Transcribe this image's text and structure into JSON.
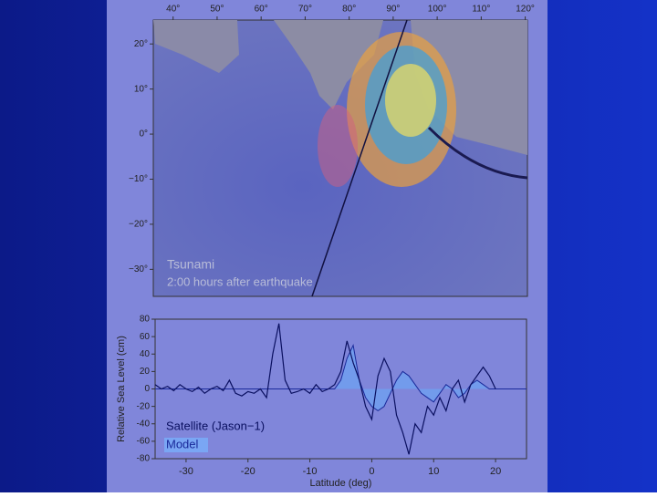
{
  "chart_data": [
    {
      "type": "map",
      "xlim": [
        35.5,
        120.5
      ],
      "xticks": [
        {
          "value": 40,
          "label": "40°"
        },
        {
          "value": 50,
          "label": "50°"
        },
        {
          "value": 60,
          "label": "60°"
        },
        {
          "value": 70,
          "label": "70°"
        },
        {
          "value": 80,
          "label": "80°"
        },
        {
          "value": 90,
          "label": "90°"
        },
        {
          "value": 100,
          "label": "100°"
        },
        {
          "value": 110,
          "label": "110°"
        },
        {
          "value": 120,
          "label": "120°"
        }
      ],
      "ylim": [
        -36,
        25.3
      ],
      "yticks": [
        {
          "value": 20,
          "label": "20°"
        },
        {
          "value": 10,
          "label": "10°"
        },
        {
          "value": 0,
          "label": "0°"
        },
        {
          "value": -10,
          "label": "−10°"
        },
        {
          "value": -20,
          "label": "−20°"
        },
        {
          "value": -30,
          "label": "−30°"
        }
      ],
      "annotations": [
        "Tsunami",
        "2:00 hours after earthquake"
      ]
    },
    {
      "type": "line",
      "x_label": "Latitude (deg)",
      "y_label": "Relative Sea Level (cm)",
      "xlim": [
        -35,
        25
      ],
      "xticks": [
        -30,
        -20,
        -10,
        0,
        10,
        20
      ],
      "ylim": [
        -80,
        80
      ],
      "yticks": [
        -80,
        -60,
        -40,
        -20,
        0,
        20,
        40,
        60,
        80
      ],
      "x": [
        -35,
        -34,
        -33,
        -32,
        -31,
        -30,
        -29,
        -28,
        -27,
        -26,
        -25,
        -24,
        -23,
        -22,
        -21,
        -20,
        -19,
        -18,
        -17,
        -16,
        -15,
        -14,
        -13,
        -12,
        -11,
        -10,
        -9,
        -8,
        -7,
        -6,
        -5,
        -4,
        -3,
        -2,
        -1,
        0,
        1,
        2,
        3,
        4,
        5,
        6,
        7,
        8,
        9,
        10,
        11,
        12,
        13,
        14,
        15,
        16,
        17,
        18,
        19,
        20,
        21,
        22,
        23,
        24,
        25
      ],
      "series": [
        {
          "name": "Satellite (Jason−1)",
          "color": "#0a1060",
          "values": [
            5,
            0,
            3,
            -2,
            5,
            0,
            -3,
            2,
            -5,
            0,
            3,
            -2,
            10,
            -5,
            -8,
            -3,
            -5,
            0,
            -10,
            40,
            75,
            10,
            -5,
            -3,
            0,
            -5,
            5,
            -3,
            0,
            5,
            20,
            55,
            30,
            10,
            -20,
            -35,
            15,
            35,
            20,
            -30,
            -50,
            -75,
            -40,
            -50,
            -20,
            -30,
            -10,
            -25,
            0,
            10,
            -15,
            5,
            15,
            25,
            15,
            0,
            null,
            null,
            null,
            null,
            null
          ]
        },
        {
          "name": "Model",
          "color": "#1a2a9a",
          "values": [
            0,
            0,
            0,
            0,
            0,
            0,
            0,
            0,
            0,
            0,
            0,
            0,
            0,
            0,
            0,
            0,
            0,
            0,
            0,
            0,
            0,
            0,
            0,
            0,
            0,
            0,
            0,
            0,
            0,
            0,
            10,
            35,
            50,
            10,
            -10,
            -20,
            -25,
            -20,
            -5,
            10,
            20,
            15,
            5,
            -5,
            -10,
            -15,
            -5,
            5,
            0,
            -10,
            -5,
            5,
            10,
            5,
            0,
            0,
            0,
            0,
            0,
            0,
            0
          ]
        }
      ]
    }
  ]
}
